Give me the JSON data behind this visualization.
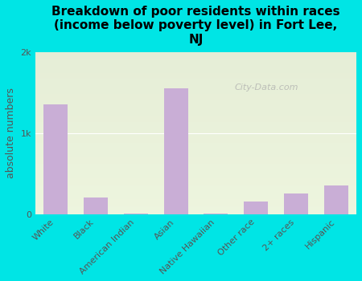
{
  "categories": [
    "White",
    "Black",
    "American Indian",
    "Asian",
    "Native Hawaiian",
    "Other race",
    "2+ races",
    "Hispanic"
  ],
  "values": [
    1350,
    200,
    5,
    1550,
    10,
    150,
    250,
    350
  ],
  "bar_color": "#c9aed6",
  "bg_color": "#00e5e5",
  "plot_bg_color_top": "#e8f0d8",
  "plot_bg_color_bottom": "#d8e8c8",
  "title": "Breakdown of poor residents within races\n(income below poverty level) in Fort Lee,\nNJ",
  "ylabel": "absolute numbers",
  "ylim": [
    0,
    2000
  ],
  "yticks": [
    0,
    1000,
    2000
  ],
  "ytick_labels": [
    "0",
    "1k",
    "2k"
  ],
  "title_fontsize": 11,
  "axis_label_fontsize": 9,
  "tick_fontsize": 8,
  "watermark_text": "City-Data.com"
}
